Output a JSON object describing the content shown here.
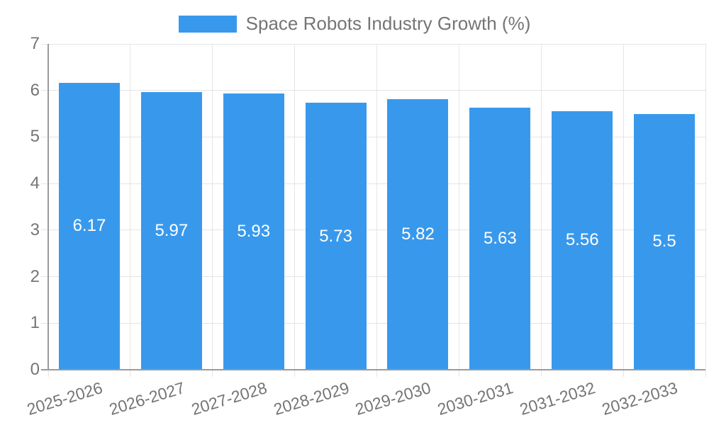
{
  "colors": {
    "bar": "#3899ec",
    "grid": "#e5e5e5",
    "axis": "#9b9b9b",
    "text": "#757575",
    "value_label": "#ffffff"
  },
  "legend": {
    "label": "Space Robots Industry Growth (%)"
  },
  "chart_data": {
    "type": "bar",
    "title": "Space Robots Industry Growth (%)",
    "categories": [
      "2025-2026",
      "2026-2027",
      "2027-2028",
      "2028-2029",
      "2029-2030",
      "2030-2031",
      "2031-2032",
      "2032-2033"
    ],
    "values": [
      6.17,
      5.97,
      5.93,
      5.73,
      5.82,
      5.63,
      5.56,
      5.5
    ],
    "value_labels": [
      6.17,
      5.97,
      5.93,
      5.73,
      5.82,
      5.63,
      5.56,
      5.5
    ],
    "xlabel": "",
    "ylabel": "",
    "ylim": [
      0,
      7
    ],
    "yticks": [
      0,
      1,
      2,
      3,
      4,
      5,
      6,
      7
    ],
    "grid": true,
    "legend_position": "top",
    "value_labels_inside_bars": true,
    "x_label_rotation_deg": -17
  }
}
